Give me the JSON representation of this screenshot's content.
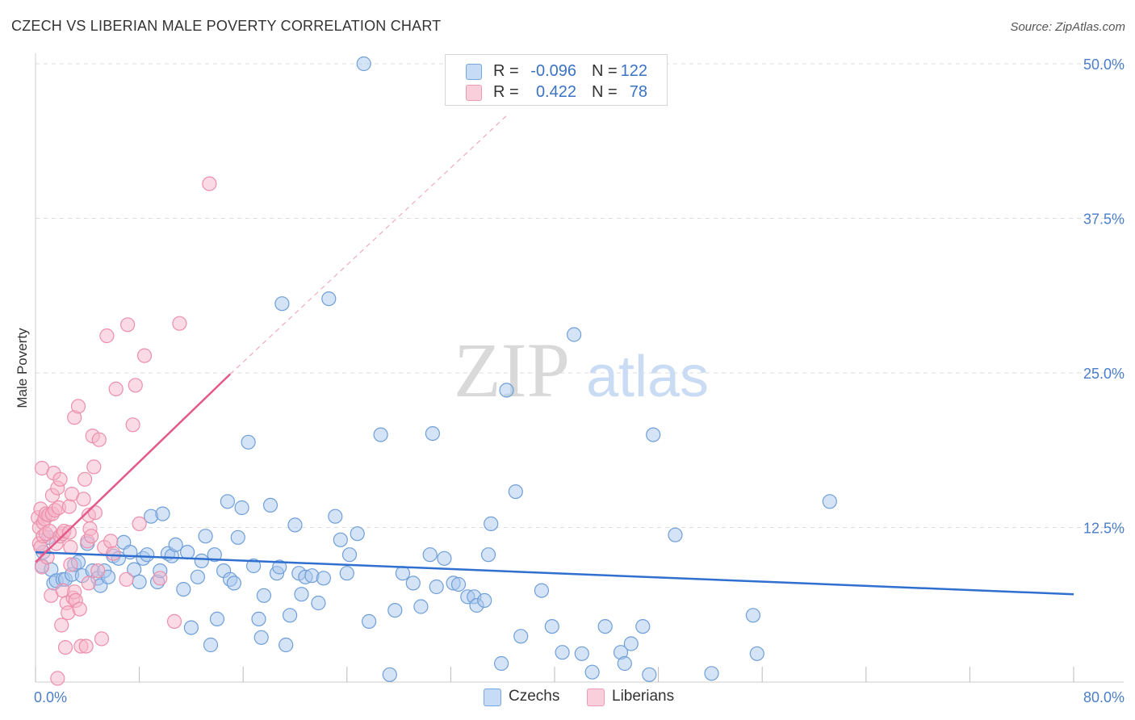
{
  "header": {
    "title": "CZECH VS LIBERIAN MALE POVERTY CORRELATION CHART",
    "source": "Source: ZipAtlas.com"
  },
  "watermark": {
    "part1": "ZIP",
    "part2": "atlas"
  },
  "colors": {
    "czech_fill": "#a9c8ee",
    "czech_stroke": "#6f9fd8",
    "czech_line": "#2f6fcf",
    "liberian_fill": "#f6b6c9",
    "liberian_stroke": "#ec8fab",
    "liberian_line": "#e2598a",
    "tick_label": "#4a7ec9",
    "grid": "#dddddd"
  },
  "legend": {
    "rows": [
      {
        "r_label": "R =",
        "r_value": "-0.096",
        "n_label": "N =",
        "n_value": "122"
      },
      {
        "r_label": "R =",
        "r_value": "0.422",
        "n_label": "N =",
        "n_value": "78"
      }
    ]
  },
  "bottom_legend": [
    "Czechs",
    "Liberians"
  ],
  "chart_data": {
    "type": "scatter",
    "title": "CZECH VS LIBERIAN MALE POVERTY CORRELATION CHART",
    "xlabel": "",
    "ylabel": "Male Poverty",
    "xlim": [
      0,
      80
    ],
    "ylim": [
      0,
      50
    ],
    "x_tick_labels": [
      "0.0%",
      "80.0%"
    ],
    "y_ticks": [
      12.5,
      25,
      37.5,
      50
    ],
    "y_tick_labels": [
      "12.5%",
      "25.0%",
      "37.5%",
      "50.0%"
    ],
    "grid": "horizontal dashed",
    "legend_position": "top-center",
    "series": [
      {
        "name": "Czechs",
        "r": -0.096,
        "n": 122,
        "trend": {
          "x": [
            0,
            80
          ],
          "y": [
            10.5,
            7.1
          ]
        },
        "points": [
          [
            0.5,
            9.4
          ],
          [
            0.6,
            10.5
          ],
          [
            1.0,
            11.7
          ],
          [
            1.2,
            9.1
          ],
          [
            1.4,
            8.0
          ],
          [
            1.6,
            8.2
          ],
          [
            2.1,
            8.3
          ],
          [
            2.3,
            8.3
          ],
          [
            2.8,
            8.7
          ],
          [
            3.0,
            9.5
          ],
          [
            3.3,
            9.7
          ],
          [
            3.6,
            8.6
          ],
          [
            4.0,
            11.2
          ],
          [
            4.4,
            9.0
          ],
          [
            4.8,
            8.4
          ],
          [
            5.0,
            7.8
          ],
          [
            5.3,
            9.0
          ],
          [
            5.6,
            8.5
          ],
          [
            6.0,
            10.2
          ],
          [
            6.4,
            10.0
          ],
          [
            6.8,
            11.3
          ],
          [
            7.3,
            10.5
          ],
          [
            7.6,
            9.1
          ],
          [
            8.0,
            8.1
          ],
          [
            8.3,
            10.0
          ],
          [
            8.6,
            10.3
          ],
          [
            8.9,
            13.4
          ],
          [
            9.4,
            8.1
          ],
          [
            9.6,
            9.0
          ],
          [
            9.8,
            13.6
          ],
          [
            10.2,
            10.4
          ],
          [
            10.5,
            10.2
          ],
          [
            10.8,
            11.1
          ],
          [
            11.4,
            7.5
          ],
          [
            11.7,
            10.5
          ],
          [
            12.0,
            4.4
          ],
          [
            12.5,
            8.5
          ],
          [
            12.8,
            9.8
          ],
          [
            13.1,
            11.8
          ],
          [
            13.5,
            3.0
          ],
          [
            13.8,
            10.3
          ],
          [
            14.0,
            5.1
          ],
          [
            14.5,
            9.0
          ],
          [
            14.8,
            14.6
          ],
          [
            15.0,
            8.3
          ],
          [
            15.3,
            8.0
          ],
          [
            15.6,
            11.7
          ],
          [
            15.9,
            14.1
          ],
          [
            16.4,
            19.4
          ],
          [
            16.8,
            9.4
          ],
          [
            17.2,
            5.1
          ],
          [
            17.4,
            3.6
          ],
          [
            17.6,
            7.0
          ],
          [
            18.1,
            14.3
          ],
          [
            18.6,
            8.8
          ],
          [
            18.8,
            9.3
          ],
          [
            19.0,
            30.6
          ],
          [
            19.3,
            3.0
          ],
          [
            19.6,
            5.4
          ],
          [
            20.0,
            12.7
          ],
          [
            20.3,
            8.8
          ],
          [
            20.5,
            7.1
          ],
          [
            20.8,
            8.5
          ],
          [
            21.3,
            8.6
          ],
          [
            21.8,
            6.4
          ],
          [
            22.2,
            8.4
          ],
          [
            22.6,
            31.0
          ],
          [
            23.1,
            13.4
          ],
          [
            23.5,
            11.5
          ],
          [
            24.0,
            8.8
          ],
          [
            24.2,
            10.3
          ],
          [
            24.8,
            12.0
          ],
          [
            25.3,
            50.0
          ],
          [
            25.7,
            4.9
          ],
          [
            26.6,
            20.0
          ],
          [
            27.3,
            0.6
          ],
          [
            27.7,
            5.8
          ],
          [
            28.3,
            8.8
          ],
          [
            29.1,
            8.0
          ],
          [
            29.7,
            6.1
          ],
          [
            30.4,
            10.3
          ],
          [
            30.6,
            20.1
          ],
          [
            30.9,
            7.7
          ],
          [
            31.5,
            10.0
          ],
          [
            32.2,
            8.0
          ],
          [
            32.6,
            7.9
          ],
          [
            33.3,
            6.9
          ],
          [
            33.8,
            6.9
          ],
          [
            34.0,
            6.2
          ],
          [
            34.6,
            6.6
          ],
          [
            34.9,
            10.3
          ],
          [
            35.1,
            12.8
          ],
          [
            35.9,
            1.5
          ],
          [
            36.3,
            23.6
          ],
          [
            37.0,
            15.4
          ],
          [
            37.4,
            3.7
          ],
          [
            39.0,
            7.4
          ],
          [
            39.8,
            4.5
          ],
          [
            40.6,
            2.4
          ],
          [
            41.5,
            28.1
          ],
          [
            42.1,
            2.3
          ],
          [
            42.9,
            0.8
          ],
          [
            43.9,
            4.5
          ],
          [
            45.1,
            2.4
          ],
          [
            45.4,
            1.5
          ],
          [
            45.9,
            3.1
          ],
          [
            46.8,
            4.5
          ],
          [
            47.3,
            0.6
          ],
          [
            47.6,
            20.0
          ],
          [
            49.3,
            11.9
          ],
          [
            52.1,
            0.7
          ],
          [
            55.3,
            5.4
          ],
          [
            55.6,
            2.3
          ],
          [
            61.2,
            14.6
          ]
        ]
      },
      {
        "name": "Liberians",
        "r": 0.422,
        "n": 78,
        "trend": {
          "x": [
            0,
            15
          ],
          "y": [
            9.7,
            24.9
          ],
          "extended_to": [
            36.5,
            46.0
          ]
        },
        "points": [
          [
            0.2,
            13.3
          ],
          [
            0.3,
            11.2
          ],
          [
            0.3,
            12.5
          ],
          [
            0.4,
            10.9
          ],
          [
            0.4,
            14.0
          ],
          [
            0.5,
            9.3
          ],
          [
            0.5,
            17.3
          ],
          [
            0.6,
            11.8
          ],
          [
            0.6,
            12.9
          ],
          [
            0.7,
            13.2
          ],
          [
            0.8,
            12.0
          ],
          [
            0.8,
            13.6
          ],
          [
            0.9,
            10.1
          ],
          [
            1.0,
            13.5
          ],
          [
            1.1,
            12.2
          ],
          [
            1.2,
            7.0
          ],
          [
            1.3,
            13.6
          ],
          [
            1.3,
            15.1
          ],
          [
            1.4,
            16.9
          ],
          [
            1.5,
            13.9
          ],
          [
            1.6,
            11.2
          ],
          [
            1.7,
            0.3
          ],
          [
            1.7,
            15.7
          ],
          [
            1.8,
            14.1
          ],
          [
            1.9,
            11.8
          ],
          [
            1.9,
            16.4
          ],
          [
            2.0,
            4.6
          ],
          [
            2.1,
            12.0
          ],
          [
            2.1,
            7.4
          ],
          [
            2.2,
            12.2
          ],
          [
            2.3,
            2.8
          ],
          [
            2.4,
            6.4
          ],
          [
            2.5,
            5.6
          ],
          [
            2.6,
            12.1
          ],
          [
            2.6,
            14.2
          ],
          [
            2.7,
            10.9
          ],
          [
            2.7,
            9.5
          ],
          [
            2.8,
            15.2
          ],
          [
            2.9,
            6.8
          ],
          [
            3.0,
            7.3
          ],
          [
            3.0,
            21.4
          ],
          [
            3.1,
            6.6
          ],
          [
            3.3,
            22.3
          ],
          [
            3.4,
            5.9
          ],
          [
            3.5,
            2.9
          ],
          [
            3.7,
            14.8
          ],
          [
            3.8,
            16.4
          ],
          [
            3.9,
            2.9
          ],
          [
            4.0,
            11.4
          ],
          [
            4.1,
            8.0
          ],
          [
            4.1,
            13.5
          ],
          [
            4.2,
            12.4
          ],
          [
            4.3,
            11.8
          ],
          [
            4.4,
            19.9
          ],
          [
            4.5,
            17.4
          ],
          [
            4.6,
            13.7
          ],
          [
            4.8,
            9.0
          ],
          [
            4.9,
            19.6
          ],
          [
            5.1,
            3.5
          ],
          [
            5.3,
            10.9
          ],
          [
            5.5,
            28.0
          ],
          [
            5.8,
            11.4
          ],
          [
            6.0,
            10.4
          ],
          [
            6.2,
            23.7
          ],
          [
            7.0,
            8.3
          ],
          [
            7.1,
            28.9
          ],
          [
            7.5,
            20.8
          ],
          [
            7.7,
            24.0
          ],
          [
            8.0,
            12.8
          ],
          [
            8.4,
            26.4
          ],
          [
            9.6,
            8.4
          ],
          [
            10.7,
            4.9
          ],
          [
            11.1,
            29.0
          ],
          [
            13.4,
            40.3
          ]
        ]
      }
    ]
  }
}
